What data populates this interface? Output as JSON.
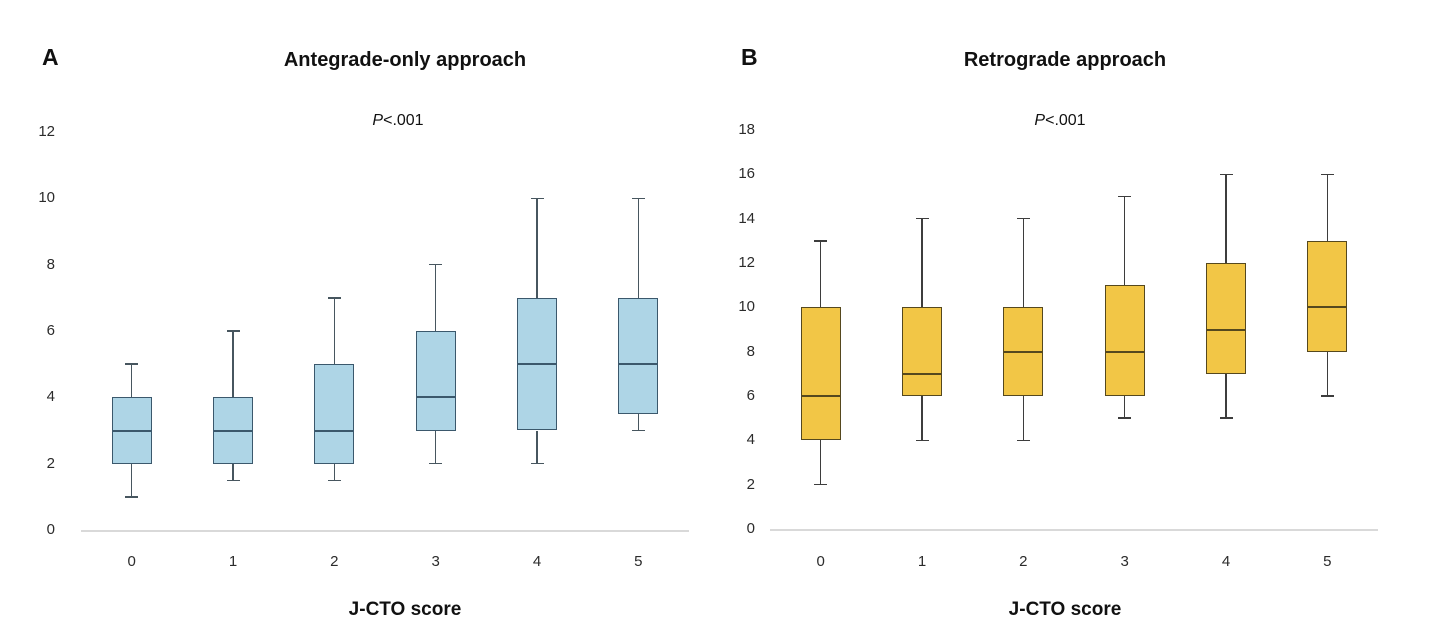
{
  "figure": {
    "x_axis_title": "J-CTO score"
  },
  "chart_data": [
    {
      "type": "boxplot",
      "panel_letter": "A",
      "title": "Antegrade-only approach",
      "annotation": "P<.001",
      "annotation_italic": "P",
      "annotation_rest": "<.001",
      "xlabel": "J-CTO score",
      "categories": [
        "0",
        "1",
        "2",
        "3",
        "4",
        "5"
      ],
      "ylim": [
        0,
        12
      ],
      "yticks": [
        0,
        2,
        4,
        6,
        8,
        10,
        12
      ],
      "grid": "off",
      "legend": "none",
      "box_fill": "#aed5e6",
      "box_border": "#3b586c",
      "whisker_color": "#47565f",
      "boxes": [
        {
          "category": "0",
          "min": 1,
          "q1": 2,
          "median": 3,
          "q3": 4,
          "max": 5
        },
        {
          "category": "1",
          "min": 1.5,
          "q1": 2,
          "median": 3,
          "q3": 4,
          "max": 6
        },
        {
          "category": "2",
          "min": 1.5,
          "q1": 2,
          "median": 3,
          "q3": 5,
          "max": 7
        },
        {
          "category": "3",
          "min": 2,
          "q1": 3,
          "median": 4,
          "q3": 6,
          "max": 8
        },
        {
          "category": "4",
          "min": 2,
          "q1": 3,
          "median": 5,
          "q3": 7,
          "max": 10
        },
        {
          "category": "5",
          "min": 3,
          "q1": 3.5,
          "median": 5,
          "q3": 7,
          "max": 10
        }
      ]
    },
    {
      "type": "boxplot",
      "panel_letter": "B",
      "title": "Retrograde approach",
      "annotation": "P<.001",
      "annotation_italic": "P",
      "annotation_rest": "<.001",
      "xlabel": "J-CTO score",
      "categories": [
        "0",
        "1",
        "2",
        "3",
        "4",
        "5"
      ],
      "ylim": [
        0,
        18
      ],
      "yticks": [
        0,
        2,
        4,
        6,
        8,
        10,
        12,
        14,
        16,
        18
      ],
      "grid": "off",
      "legend": "none",
      "box_fill": "#f2c646",
      "box_border": "#55481e",
      "whisker_color": "#3d3d3d",
      "boxes": [
        {
          "category": "0",
          "min": 2,
          "q1": 4,
          "median": 6,
          "q3": 10,
          "max": 13
        },
        {
          "category": "1",
          "min": 4,
          "q1": 6,
          "median": 7,
          "q3": 10,
          "max": 14
        },
        {
          "category": "2",
          "min": 4,
          "q1": 6,
          "median": 8,
          "q3": 10,
          "max": 14
        },
        {
          "category": "3",
          "min": 5,
          "q1": 6,
          "median": 8,
          "q3": 11,
          "max": 15
        },
        {
          "category": "4",
          "min": 5,
          "q1": 7,
          "median": 9,
          "q3": 12,
          "max": 16
        },
        {
          "category": "5",
          "min": 6,
          "q1": 8,
          "median": 10,
          "q3": 13,
          "max": 16
        }
      ]
    }
  ]
}
